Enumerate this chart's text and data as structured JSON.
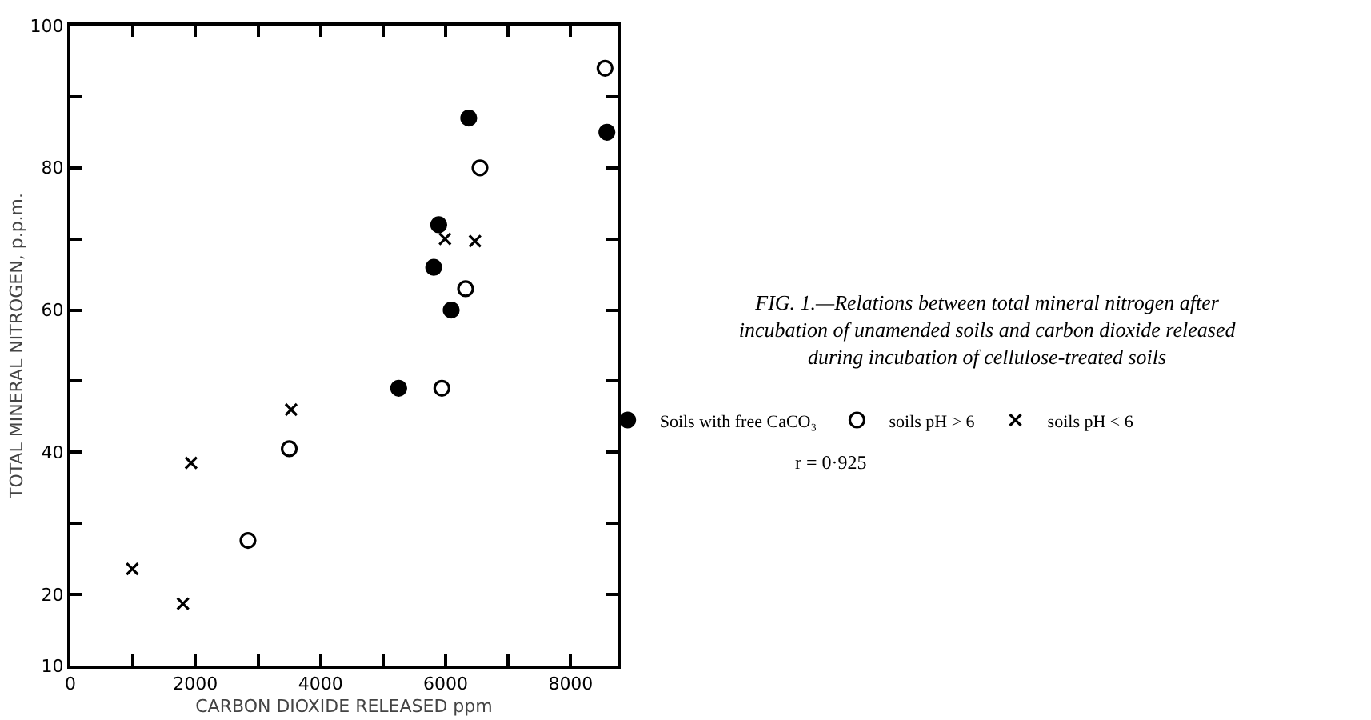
{
  "chart_data": {
    "type": "scatter",
    "title": "FIG. 1.—Relations between total mineral nitrogen after incubation of unamended soils and carbon dioxide released during incubation of cellulose-treated soils",
    "xlabel": "CARBON DIOXIDE RELEASED ppm",
    "ylabel": "TOTAL MINERAL NITROGEN, p.p.m.",
    "annotations": [
      "r = 0·925"
    ],
    "series": [
      {
        "name": "Soils with free CaCO₃",
        "color": "#000000",
        "marker": "circle",
        "x": [
          5250,
          6090,
          5810,
          5890,
          6370,
          8580
        ],
        "values": [
          49,
          60,
          66,
          72,
          87,
          85
        ]
      },
      {
        "name": "soils pH > 6",
        "color": "#ffffff",
        "marker": "circle",
        "x": [
          5940,
          6320,
          6550,
          8550,
          3500,
          2840
        ],
        "values": [
          49,
          63,
          80,
          94,
          40.5,
          27.6
        ]
      },
      {
        "name": "soils pH < 6",
        "color": "#000000",
        "marker": "cross",
        "x": [
          5990,
          6470,
          3530,
          1930,
          990,
          1800
        ],
        "values": [
          70,
          69.7,
          46,
          38.5,
          23.6,
          18.7
        ]
      }
    ],
    "xlim": [
      0,
      8750
    ],
    "ylim": [
      10,
      100
    ],
    "xticks": [
      0,
      {
        "value": 1000,
        "label": null
      },
      2000,
      {
        "value": 3000,
        "label": null
      },
      4000,
      {
        "value": 5000,
        "label": null
      },
      6000,
      {
        "value": 7000,
        "label": null
      },
      8000
    ],
    "yticks": [
      10,
      20,
      {
        "value": 30,
        "label": null
      },
      40,
      {
        "value": 50,
        "label": null
      },
      60,
      {
        "value": 70,
        "label": null
      },
      80,
      {
        "value": 90,
        "label": null
      },
      100
    ],
    "grid": false,
    "legend": "right"
  }
}
